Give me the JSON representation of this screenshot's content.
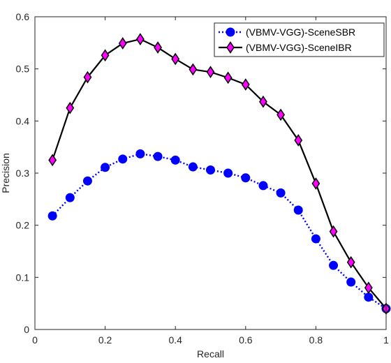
{
  "chart_data": {
    "type": "line",
    "title": "",
    "xlabel": "Recall",
    "ylabel": "Precision",
    "xlim": [
      0,
      1
    ],
    "ylim": [
      0,
      0.6
    ],
    "xticks": [
      "0",
      "0.2",
      "0.4",
      "0.6",
      "0.8",
      "1"
    ],
    "yticks": [
      "0",
      "0.1",
      "0.2",
      "0.3",
      "0.4",
      "0.5",
      "0.6"
    ],
    "grid": false,
    "legend_position": "top-right",
    "x": [
      0.05,
      0.1,
      0.15,
      0.2,
      0.25,
      0.3,
      0.35,
      0.4,
      0.45,
      0.5,
      0.55,
      0.6,
      0.65,
      0.7,
      0.75,
      0.8,
      0.85,
      0.9,
      0.95,
      1.0
    ],
    "series": [
      {
        "name": "(VBMV-VGG)-SceneSBR",
        "color": "#0000ff",
        "line_style": "dotted",
        "marker": "circle",
        "values": [
          0.218,
          0.253,
          0.285,
          0.311,
          0.327,
          0.337,
          0.332,
          0.325,
          0.312,
          0.306,
          0.3,
          0.291,
          0.276,
          0.262,
          0.229,
          0.174,
          0.123,
          0.091,
          0.062,
          0.04
        ]
      },
      {
        "name": "(VBMV-VGG)-SceneIBR",
        "color": "#000000",
        "marker_color": "#ff00ff",
        "line_style": "solid",
        "marker": "diamond",
        "values": [
          0.325,
          0.425,
          0.484,
          0.526,
          0.549,
          0.557,
          0.541,
          0.519,
          0.499,
          0.494,
          0.483,
          0.47,
          0.437,
          0.412,
          0.363,
          0.28,
          0.188,
          0.129,
          0.08,
          0.04
        ]
      }
    ]
  }
}
